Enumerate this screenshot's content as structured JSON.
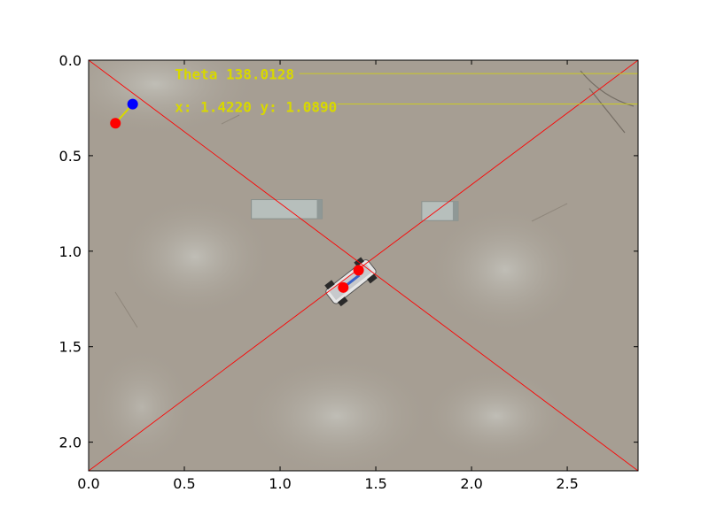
{
  "chart_data": {
    "type": "scatter",
    "title": "",
    "xlabel": "",
    "ylabel": "",
    "xlim": [
      0.0,
      2.87
    ],
    "ylim": [
      2.15,
      0.0
    ],
    "y_inverted": true,
    "x_ticks": [
      "0.0",
      "0.5",
      "1.0",
      "1.5",
      "2.0",
      "2.5"
    ],
    "x_tick_values": [
      0.0,
      0.5,
      1.0,
      1.5,
      2.0,
      2.5
    ],
    "y_ticks": [
      "0.0",
      "0.5",
      "1.0",
      "1.5",
      "2.0"
    ],
    "y_tick_values": [
      0.0,
      0.5,
      1.0,
      1.5,
      2.0
    ],
    "grid": false,
    "background": "top-down camera image of a floor with a small robot car and two boxes",
    "overlay_text": {
      "theta_line": "Theta 138.0128",
      "position_line": "x: 1.4220 y: 1.0890"
    },
    "overlay_text_color": "#d8d800",
    "overlay_text_anchor_x": 0.45,
    "overlay_text_baselines_y": [
      0.1,
      0.27
    ],
    "points": [
      {
        "x": 0.23,
        "y": 0.23,
        "color": "#0000ff"
      },
      {
        "x": 0.14,
        "y": 0.33,
        "color": "#ff0000"
      },
      {
        "x": 1.41,
        "y": 1.1,
        "color": "#ff0000"
      },
      {
        "x": 1.33,
        "y": 1.19,
        "color": "#ff0000"
      }
    ],
    "heading_segments": [
      {
        "x1": 0.14,
        "y1": 0.33,
        "x2": 0.23,
        "y2": 0.23,
        "color": "#d8d800"
      }
    ],
    "diagonals": [
      {
        "x1": 0.0,
        "y1": 0.0,
        "x2": 2.87,
        "y2": 2.15,
        "color": "#ff0000"
      },
      {
        "x1": 0.0,
        "y1": 2.15,
        "x2": 2.87,
        "y2": 0.0,
        "color": "#ff0000"
      }
    ],
    "horizontal_lines": [
      {
        "y": 0.07,
        "x_start": 1.1,
        "color": "#d8d800"
      },
      {
        "y": 0.23,
        "x_start": 1.3,
        "color": "#d8d800"
      }
    ],
    "boxes": [
      {
        "x0": 0.85,
        "x1": 1.22,
        "y0": 0.73,
        "y1": 0.83
      },
      {
        "x0": 1.74,
        "x1": 1.93,
        "y0": 0.74,
        "y1": 0.84
      }
    ],
    "robot": {
      "cx": 1.37,
      "cy": 1.16,
      "angle_deg": -38
    }
  }
}
